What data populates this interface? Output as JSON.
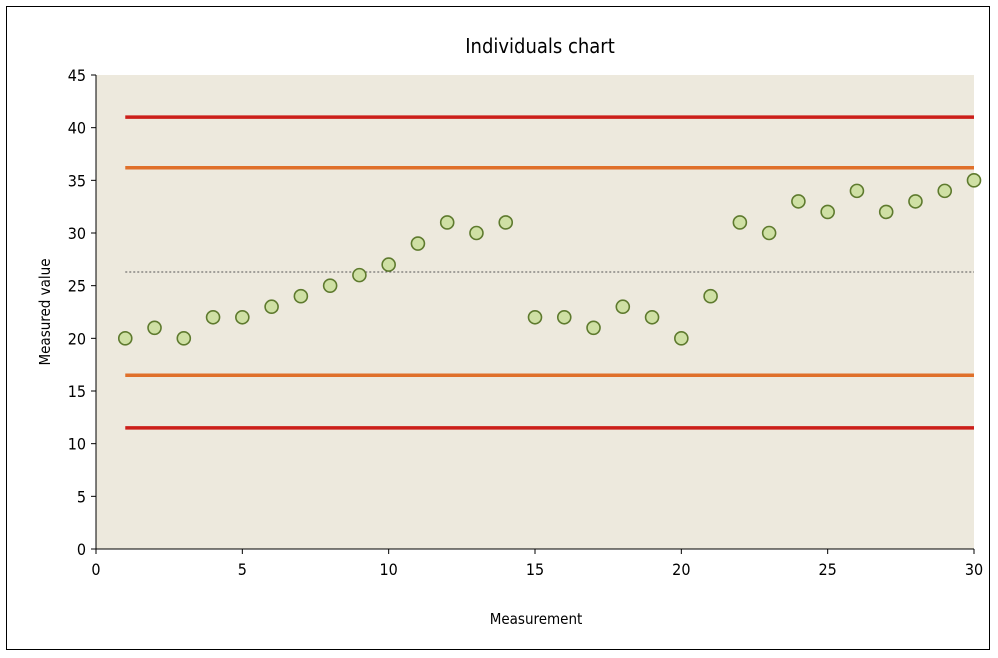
{
  "chart_data": {
    "type": "scatter",
    "title": "Individuals chart",
    "xlabel": "Measurement",
    "ylabel": "Measured value",
    "xlim": [
      0,
      30
    ],
    "ylim": [
      0,
      45
    ],
    "xticks": [
      0,
      5,
      10,
      15,
      20,
      25,
      30
    ],
    "yticks": [
      0,
      5,
      10,
      15,
      20,
      25,
      30,
      35,
      40,
      45
    ],
    "grid": false,
    "x": [
      1,
      2,
      3,
      4,
      5,
      6,
      7,
      8,
      9,
      10,
      11,
      12,
      13,
      14,
      15,
      16,
      17,
      18,
      19,
      20,
      21,
      22,
      23,
      24,
      25,
      26,
      27,
      28,
      29,
      30
    ],
    "values": [
      20,
      21,
      20,
      22,
      22,
      23,
      24,
      25,
      26,
      27,
      29,
      31,
      30,
      31,
      22,
      22,
      21,
      23,
      22,
      20,
      24,
      31,
      30,
      33,
      32,
      34,
      32,
      33,
      34,
      35
    ],
    "reference_lines": [
      {
        "value": 41,
        "color": "#cc1f1a",
        "style": "solid"
      },
      {
        "value": 36.2,
        "color": "#e0702a",
        "style": "solid"
      },
      {
        "value": 26.3,
        "color": "#555555",
        "style": "dotted"
      },
      {
        "value": 16.5,
        "color": "#e0702a",
        "style": "solid"
      },
      {
        "value": 11.5,
        "color": "#cc1f1a",
        "style": "solid"
      }
    ],
    "colors": {
      "plot_background": "#ede9dd",
      "marker_fill": "#cfe0a4",
      "marker_stroke": "#5e7a2e"
    }
  }
}
